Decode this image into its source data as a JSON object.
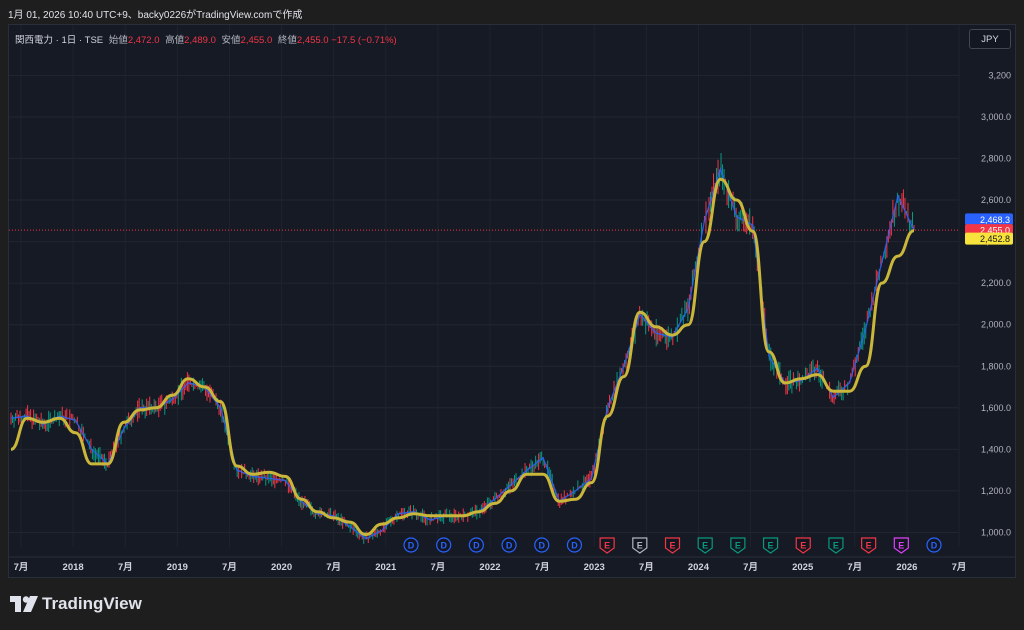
{
  "snapshot_header": "1月 01, 2026 10:40 UTC+9、backy0226がTradingView.comで作成",
  "legend": {
    "symbol": "関西電力 · 1日 · TSE",
    "open_label": "始値",
    "open": "2,472.0",
    "high_label": "高値",
    "high": "2,489.0",
    "low_label": "安値",
    "low": "2,455.0",
    "close_label": "終値",
    "close": "2,455.0",
    "change": "−17.5 (−0.71%)"
  },
  "currency_button": "JPY",
  "price_scale": [
    "3,200",
    "3,000.0",
    "2,800.0",
    "2,600.0",
    "2,400.0",
    "2,200.0",
    "2,000.0",
    "1,800.0",
    "1,600.0",
    "1,400.0",
    "1,200.0",
    "1,000.0"
  ],
  "price_tags": [
    {
      "label": "2,468.3",
      "color": "#2962ff",
      "text_color": "#ffffff"
    },
    {
      "label": "2,455.0",
      "color": "#f23645",
      "text_color": "#ffffff"
    },
    {
      "label": "2,452.8",
      "color": "#f7e33b",
      "text_color": "#131722"
    }
  ],
  "time_axis": [
    "7月",
    "2018",
    "7月",
    "2019",
    "7月",
    "2020",
    "7月",
    "2021",
    "7月",
    "2022",
    "7月",
    "2023",
    "7月",
    "2024",
    "7月",
    "2025",
    "7月",
    "2026",
    "7月"
  ],
  "event_markers": [
    {
      "type": "D",
      "color": "#2962ff"
    },
    {
      "type": "D",
      "color": "#2962ff"
    },
    {
      "type": "D",
      "color": "#2962ff"
    },
    {
      "type": "D",
      "color": "#2962ff"
    },
    {
      "type": "D",
      "color": "#2962ff"
    },
    {
      "type": "D",
      "color": "#2962ff"
    },
    {
      "type": "E",
      "color": "#f23645"
    },
    {
      "type": "E",
      "color": "#b2b5be"
    },
    {
      "type": "E",
      "color": "#f23645"
    },
    {
      "type": "E",
      "color": "#089981"
    },
    {
      "type": "E",
      "color": "#089981"
    },
    {
      "type": "E",
      "color": "#089981"
    },
    {
      "type": "E",
      "color": "#f23645"
    },
    {
      "type": "E",
      "color": "#089981"
    },
    {
      "type": "E",
      "color": "#f23645"
    },
    {
      "type": "E",
      "color": "#e040fb"
    },
    {
      "type": "D",
      "color": "#2962ff"
    }
  ],
  "chart_data": {
    "type": "line",
    "series": [
      {
        "values": [
          1550,
          1560,
          1520,
          1560,
          1540,
          1400,
          1330,
          1500,
          1600,
          1600,
          1640,
          1720,
          1700,
          1600,
          1300,
          1270,
          1260,
          1250,
          1150,
          1090,
          1080,
          1030,
          970,
          1010,
          1090,
          1100,
          1060,
          1080,
          1080,
          1100,
          1160,
          1230,
          1300,
          1360,
          1150,
          1200,
          1260,
          1600,
          1800,
          2050,
          1960,
          1940,
          2080,
          2500,
          2750,
          2520,
          2480,
          1850,
          1720,
          1730,
          1790,
          1650,
          1720,
          1980,
          2300,
          2620,
          2455
        ]
      },
      {
        "values": [
          1400,
          1550,
          1530,
          1550,
          1480,
          1330,
          1330,
          1530,
          1590,
          1600,
          1660,
          1740,
          1700,
          1630,
          1320,
          1280,
          1290,
          1270,
          1160,
          1100,
          1070,
          1050,
          990,
          1040,
          1070,
          1090,
          1080,
          1080,
          1080,
          1100,
          1140,
          1200,
          1280,
          1280,
          1150,
          1160,
          1240,
          1560,
          1750,
          2060,
          1990,
          1950,
          2000,
          2400,
          2700,
          2600,
          2450,
          1870,
          1720,
          1740,
          1760,
          1680,
          1680,
          1800,
          2200,
          2330,
          2453
        ]
      }
    ],
    "x_range": [
      "2017-04",
      "2026-01"
    ],
    "ylim": [
      930,
      3250
    ],
    "y_ticks": [
      1000,
      1200,
      1400,
      1600,
      1800,
      2000,
      2200,
      2400,
      2600,
      2800,
      3000,
      3200
    ]
  },
  "brand": "TradingView"
}
